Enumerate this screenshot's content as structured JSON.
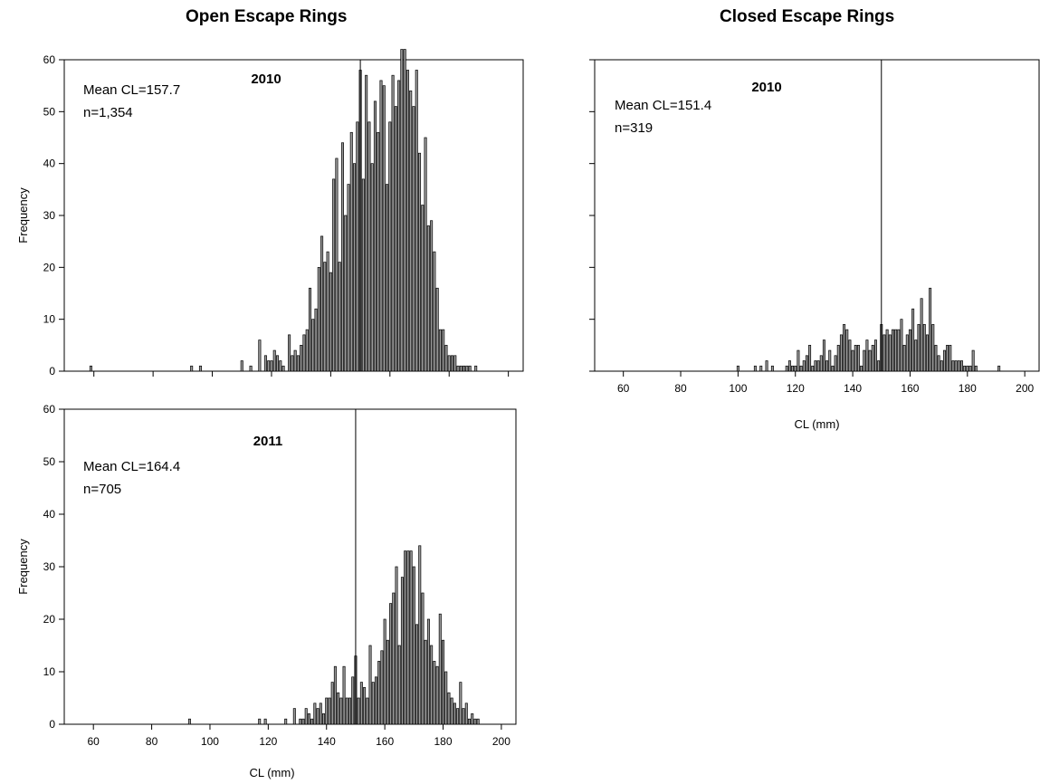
{
  "figure": {
    "col_titles": {
      "open": "Open Escape Rings",
      "closed": "Closed Escape Rings"
    }
  },
  "chart_data": [
    {
      "id": "open2010",
      "type": "bar",
      "group": "Open Escape Rings",
      "panel_label": "2010",
      "stats": [
        "Mean CL=157.7",
        "n=1,354"
      ],
      "ylabel": "Frequency",
      "xlabel": "",
      "xlim": [
        50,
        205
      ],
      "ylim": [
        0,
        60
      ],
      "yticks": [
        0,
        10,
        20,
        30,
        40,
        50,
        60
      ],
      "xticks": [
        60,
        80,
        100,
        120,
        140,
        160,
        180,
        200
      ],
      "show_xtick_labels": false,
      "show_ytick_labels": true,
      "reference_line_x": 150,
      "x": [
        59,
        93,
        96,
        110,
        113,
        116,
        118,
        119,
        120,
        121,
        122,
        123,
        124,
        126,
        127,
        128,
        129,
        130,
        131,
        132,
        133,
        134,
        135,
        136,
        137,
        138,
        139,
        140,
        141,
        142,
        143,
        144,
        145,
        146,
        147,
        148,
        149,
        150,
        151,
        152,
        153,
        154,
        155,
        156,
        157,
        158,
        159,
        160,
        161,
        162,
        163,
        164,
        165,
        166,
        167,
        168,
        169,
        170,
        171,
        172,
        173,
        174,
        175,
        176,
        177,
        178,
        179,
        180,
        181,
        182,
        183,
        184,
        185,
        186,
        187,
        189
      ],
      "values": [
        1,
        1,
        1,
        2,
        1,
        6,
        3,
        2,
        2,
        4,
        3,
        2,
        1,
        7,
        3,
        4,
        3,
        5,
        7,
        8,
        16,
        10,
        12,
        20,
        26,
        21,
        23,
        19,
        37,
        41,
        21,
        44,
        30,
        36,
        46,
        40,
        48,
        58,
        37,
        57,
        48,
        40,
        52,
        46,
        56,
        55,
        36,
        48,
        57,
        51,
        56,
        62,
        62,
        58,
        54,
        51,
        58,
        42,
        32,
        45,
        28,
        29,
        23,
        16,
        8,
        8,
        5,
        3,
        3,
        3,
        1,
        1,
        1,
        1,
        1,
        1
      ]
    },
    {
      "id": "closed2010",
      "type": "bar",
      "group": "Closed Escape Rings",
      "panel_label": "2010",
      "stats": [
        "Mean CL=151.4",
        "n=319"
      ],
      "ylabel": "",
      "xlabel": "CL (mm)",
      "xlim": [
        50,
        205
      ],
      "ylim": [
        0,
        60
      ],
      "yticks": [
        0,
        10,
        20,
        30,
        40,
        50,
        60
      ],
      "xticks": [
        60,
        80,
        100,
        120,
        140,
        160,
        180,
        200
      ],
      "show_xtick_labels": true,
      "show_ytick_labels": false,
      "reference_line_x": 150,
      "x": [
        100,
        106,
        108,
        110,
        112,
        117,
        118,
        119,
        120,
        121,
        122,
        123,
        124,
        125,
        126,
        127,
        128,
        129,
        130,
        131,
        132,
        133,
        134,
        135,
        136,
        137,
        138,
        139,
        140,
        141,
        142,
        143,
        144,
        145,
        146,
        147,
        148,
        149,
        150,
        151,
        152,
        153,
        154,
        155,
        156,
        157,
        158,
        159,
        160,
        161,
        162,
        163,
        164,
        165,
        166,
        167,
        168,
        169,
        170,
        171,
        172,
        173,
        174,
        175,
        176,
        177,
        178,
        179,
        180,
        181,
        182,
        183,
        191
      ],
      "values": [
        1,
        1,
        1,
        2,
        1,
        1,
        2,
        1,
        1,
        4,
        1,
        2,
        3,
        5,
        1,
        2,
        2,
        3,
        6,
        2,
        4,
        1,
        3,
        5,
        7,
        9,
        8,
        6,
        4,
        5,
        5,
        1,
        4,
        6,
        4,
        5,
        6,
        2,
        9,
        7,
        8,
        7,
        8,
        8,
        8,
        10,
        5,
        7,
        8,
        12,
        6,
        9,
        14,
        9,
        7,
        16,
        9,
        5,
        3,
        2,
        4,
        5,
        5,
        2,
        2,
        2,
        2,
        1,
        1,
        1,
        4,
        1,
        1
      ]
    },
    {
      "id": "open2011",
      "type": "bar",
      "group": "Open Escape Rings",
      "panel_label": "2011",
      "stats": [
        "Mean CL=164.4",
        "n=705"
      ],
      "ylabel": "Frequency",
      "xlabel": "CL (mm)",
      "xlim": [
        50,
        205
      ],
      "ylim": [
        0,
        60
      ],
      "yticks": [
        0,
        10,
        20,
        30,
        40,
        50,
        60
      ],
      "xticks": [
        60,
        80,
        100,
        120,
        140,
        160,
        180,
        200
      ],
      "show_xtick_labels": true,
      "show_ytick_labels": true,
      "reference_line_x": 150,
      "x": [
        93,
        117,
        119,
        126,
        129,
        131,
        132,
        133,
        134,
        135,
        136,
        137,
        138,
        139,
        140,
        141,
        142,
        143,
        144,
        145,
        146,
        147,
        148,
        149,
        150,
        151,
        152,
        153,
        154,
        155,
        156,
        157,
        158,
        159,
        160,
        161,
        162,
        163,
        164,
        165,
        166,
        167,
        168,
        169,
        170,
        171,
        172,
        173,
        174,
        175,
        176,
        177,
        178,
        179,
        180,
        181,
        182,
        183,
        184,
        185,
        186,
        187,
        188,
        189,
        190,
        191,
        192
      ],
      "values": [
        1,
        1,
        1,
        1,
        3,
        1,
        1,
        3,
        2,
        1,
        4,
        3,
        4,
        2,
        5,
        5,
        8,
        11,
        6,
        5,
        11,
        5,
        5,
        9,
        13,
        5,
        8,
        7,
        5,
        15,
        8,
        9,
        12,
        14,
        20,
        16,
        23,
        25,
        30,
        15,
        28,
        33,
        33,
        33,
        30,
        19,
        34,
        25,
        16,
        20,
        15,
        12,
        11,
        21,
        16,
        10,
        6,
        5,
        4,
        3,
        8,
        3,
        4,
        1,
        2,
        1,
        1
      ]
    }
  ]
}
